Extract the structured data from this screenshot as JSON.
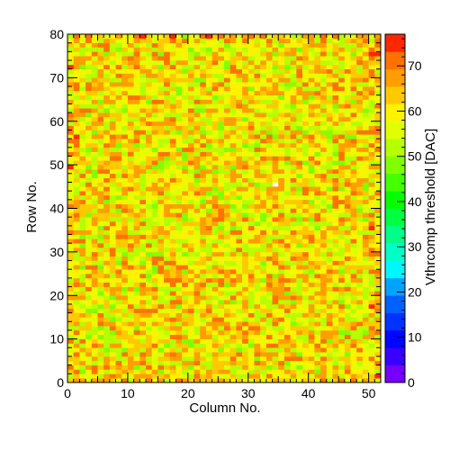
{
  "chart_data": {
    "type": "heatmap",
    "xlabel": "Column No.",
    "ylabel": "Row No.",
    "zlabel": "Vthrcomp threshold [DAC]",
    "xlim": [
      0,
      52
    ],
    "ylim": [
      0,
      80
    ],
    "zlim": [
      0,
      77
    ],
    "x_ticks": [
      0,
      10,
      20,
      30,
      40,
      50
    ],
    "y_ticks": [
      0,
      10,
      20,
      30,
      40,
      50,
      60,
      70,
      80
    ],
    "z_ticks": [
      0,
      10,
      20,
      30,
      40,
      50,
      60,
      70
    ],
    "typical_value_range": [
      48,
      70
    ],
    "central_value": 60,
    "empty_pixel": {
      "column": 34,
      "row": 45
    }
  }
}
